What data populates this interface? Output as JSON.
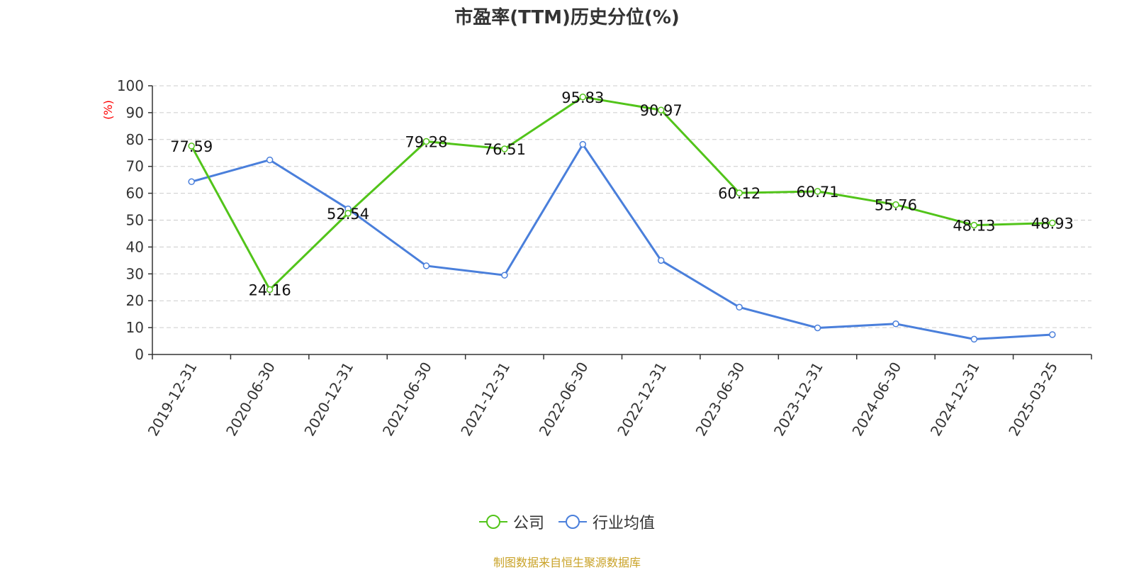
{
  "chart_data": {
    "type": "line",
    "title": "市盈率(TTM)历史分位(%)",
    "ylabel": "(%)",
    "xlabel": "",
    "ylim": [
      0,
      100
    ],
    "yticks": [
      0,
      10,
      20,
      30,
      40,
      50,
      60,
      70,
      80,
      90,
      100
    ],
    "grid": true,
    "legend_position": "bottom-center",
    "categories": [
      "2019-12-31",
      "2020-06-30",
      "2020-12-31",
      "2021-06-30",
      "2021-12-31",
      "2022-06-30",
      "2022-12-31",
      "2023-06-30",
      "2023-12-31",
      "2024-06-30",
      "2024-12-31",
      "2025-03-25"
    ],
    "series": [
      {
        "name": "公司",
        "color": "#52c41a",
        "labeled": true,
        "values": [
          77.59,
          24.16,
          52.54,
          79.28,
          76.51,
          95.83,
          90.97,
          60.12,
          60.71,
          55.76,
          48.13,
          48.93
        ]
      },
      {
        "name": "行业均值",
        "color": "#4a7fdb",
        "labeled": false,
        "values": [
          64.3,
          72.4,
          54.2,
          33.0,
          29.5,
          78.2,
          35.0,
          17.6,
          9.9,
          11.4,
          5.7,
          7.4
        ]
      }
    ]
  },
  "colors": {
    "ylabel": "#ff0000",
    "source": "#c9a227"
  },
  "source_note": "制图数据来自恒生聚源数据库"
}
